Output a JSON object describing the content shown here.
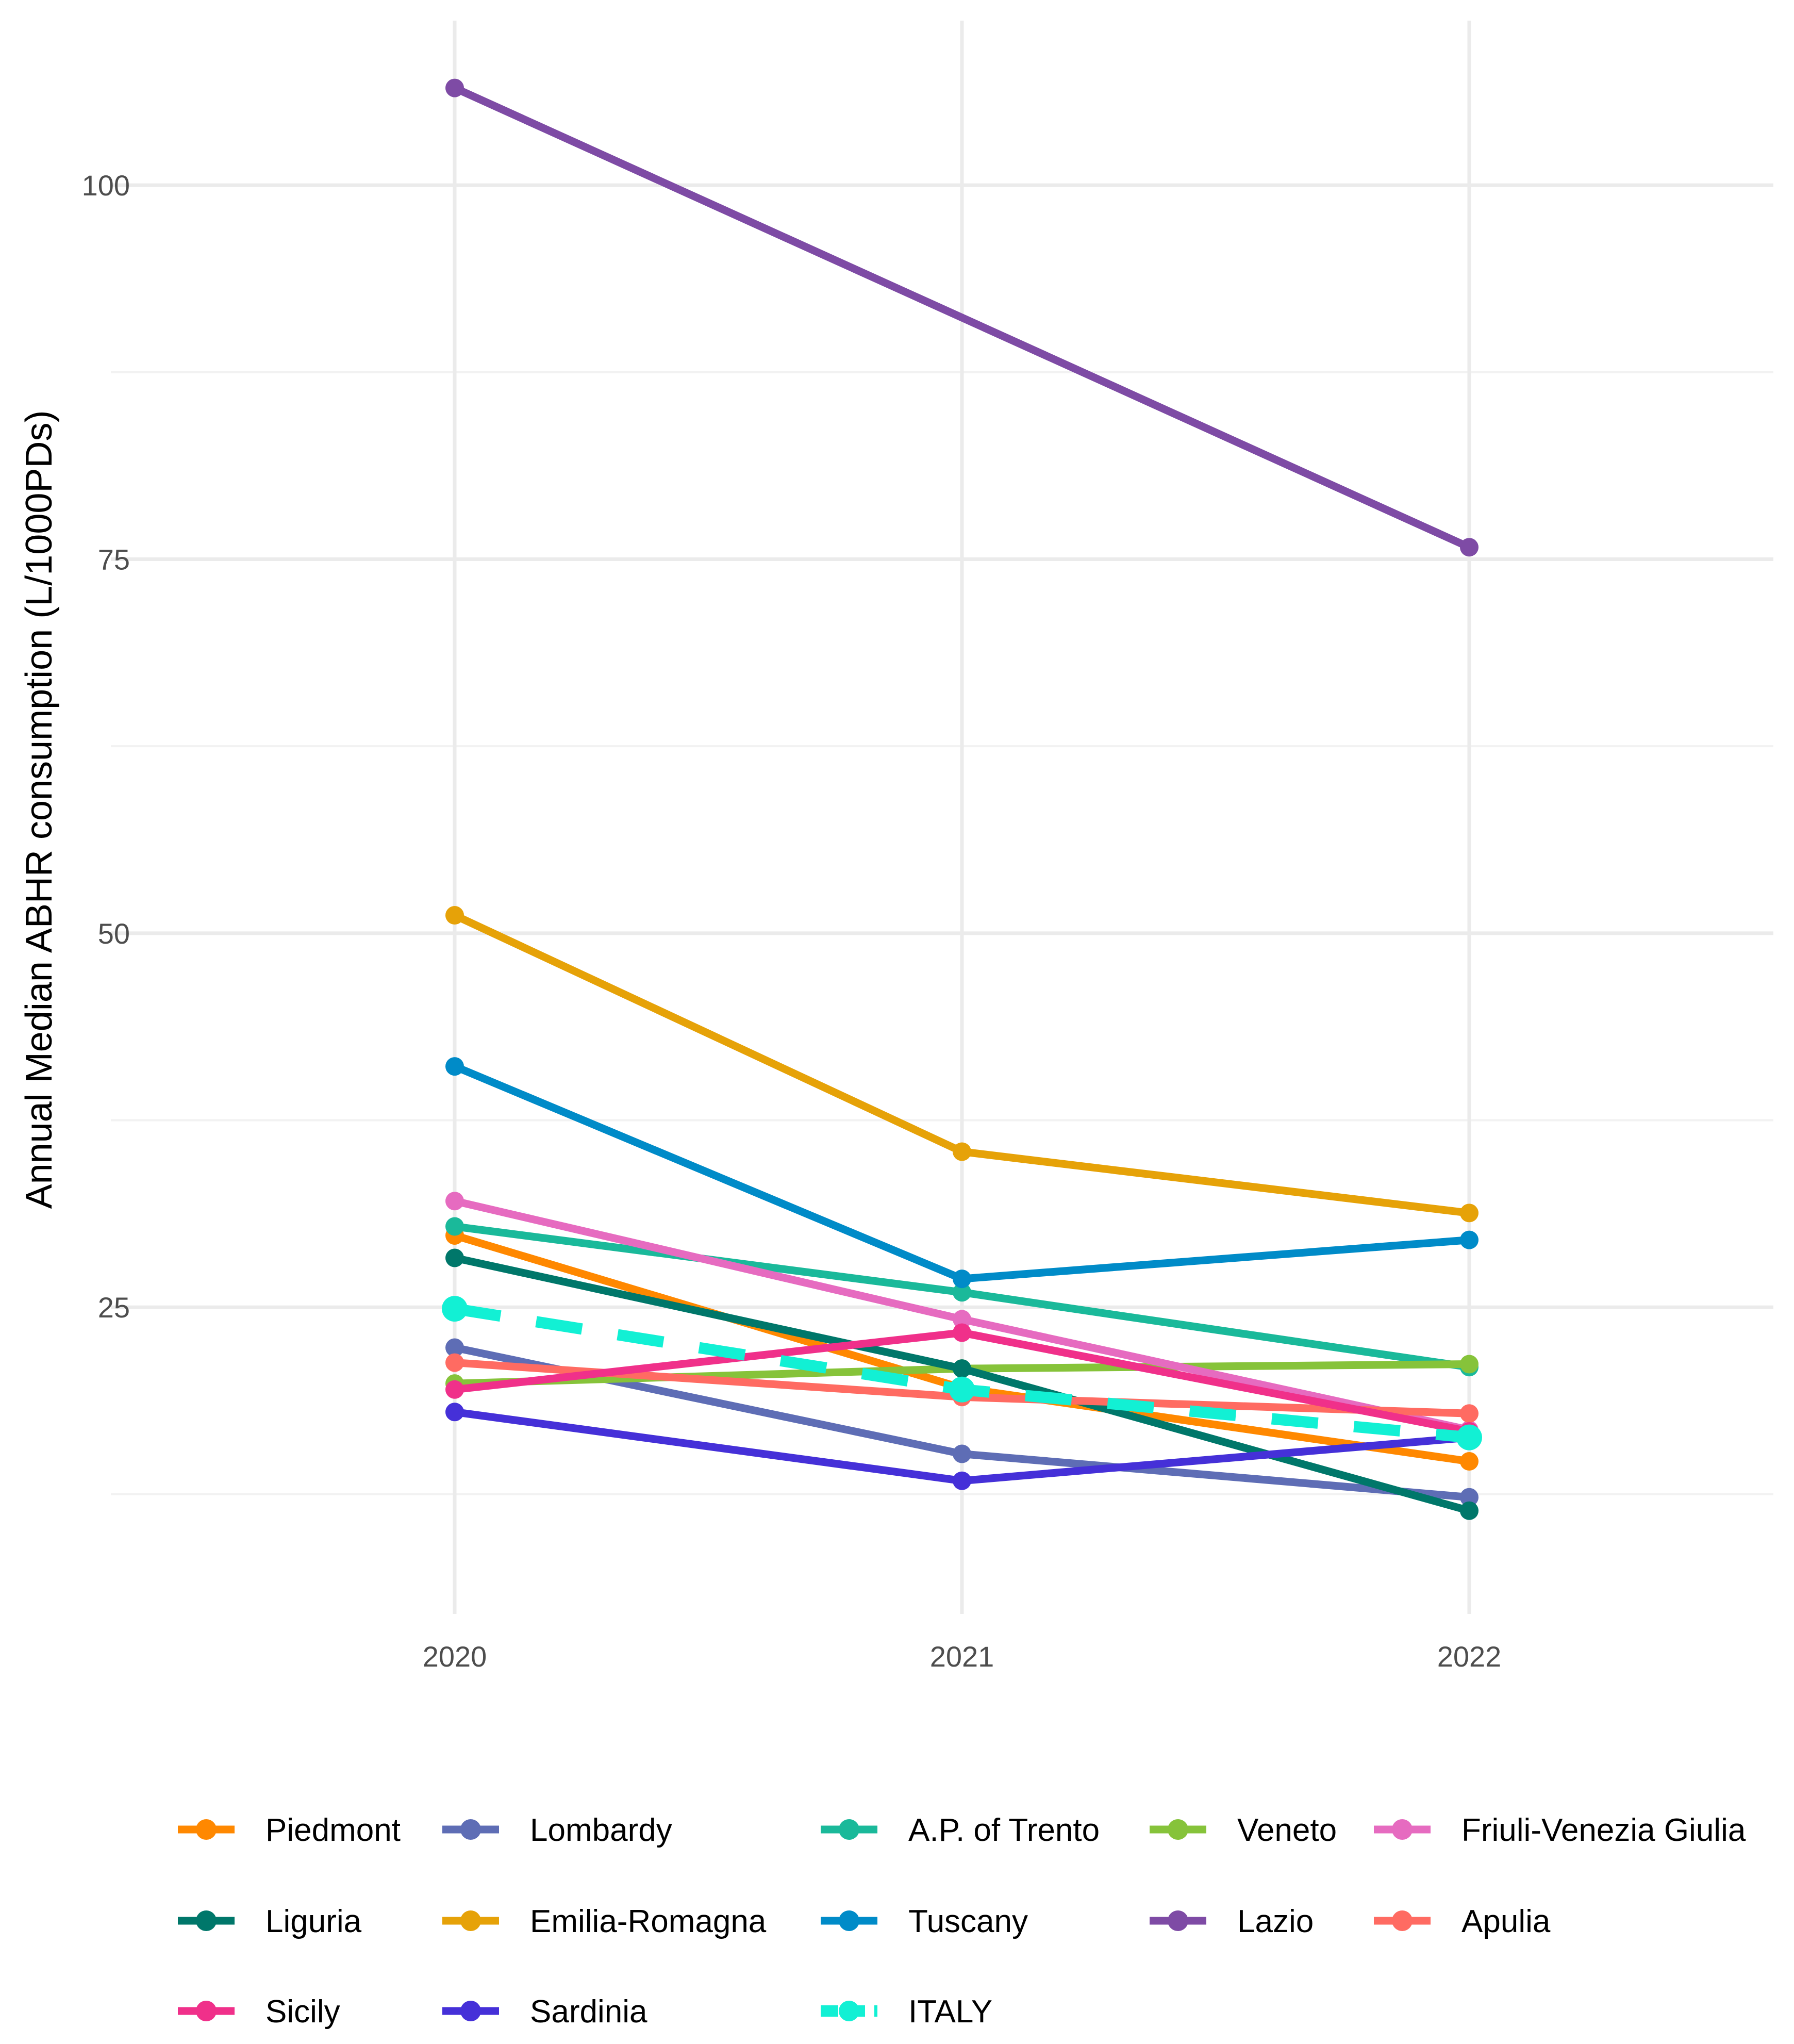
{
  "chart_data": {
    "type": "line",
    "title": "",
    "xlabel": "",
    "ylabel": "Annual Median ABHR consumption (L/1000PDs)",
    "x": [
      "2020",
      "2021",
      "2022"
    ],
    "ylim": [
      4.5,
      111
    ],
    "yticks": [
      25,
      50,
      75,
      100
    ],
    "grid": true,
    "legend_position": "bottom",
    "series": [
      {
        "name": "Piedmont",
        "color": "#FF8800",
        "dashed": false,
        "values": [
          29.8,
          19.6,
          14.7
        ]
      },
      {
        "name": "Lombardy",
        "color": "#5E6DB5",
        "dashed": false,
        "values": [
          22.3,
          15.2,
          12.3
        ]
      },
      {
        "name": "A.P. of Trento",
        "color": "#1AB99A",
        "dashed": false,
        "values": [
          30.4,
          26.0,
          21.0
        ]
      },
      {
        "name": "Veneto",
        "color": "#86C33A",
        "dashed": false,
        "values": [
          19.9,
          20.9,
          21.2
        ]
      },
      {
        "name": "Friuli-Venezia Giulia",
        "color": "#E66BC0",
        "dashed": false,
        "values": [
          32.1,
          24.2,
          16.8
        ]
      },
      {
        "name": "Liguria",
        "color": "#00776A",
        "dashed": false,
        "values": [
          28.3,
          20.9,
          11.4
        ]
      },
      {
        "name": "Emilia-Romagna",
        "color": "#E6A208",
        "dashed": false,
        "values": [
          51.2,
          35.4,
          31.3
        ]
      },
      {
        "name": "Tuscany",
        "color": "#008BC8",
        "dashed": false,
        "values": [
          41.1,
          26.9,
          29.5
        ]
      },
      {
        "name": "Lazio",
        "color": "#7E4BA5",
        "dashed": false,
        "values": [
          106.5,
          null,
          75.8
        ]
      },
      {
        "name": "Apulia",
        "color": "#FF6B62",
        "dashed": false,
        "values": [
          21.3,
          19.0,
          17.9
        ]
      },
      {
        "name": "Sicily",
        "color": "#F0308A",
        "dashed": false,
        "values": [
          19.5,
          23.3,
          16.7
        ]
      },
      {
        "name": "Sardinia",
        "color": "#4530D8",
        "dashed": false,
        "values": [
          18.0,
          13.4,
          16.3
        ]
      },
      {
        "name": "ITALY",
        "color": "#12F0D4",
        "dashed": true,
        "values": [
          24.9,
          19.5,
          16.3
        ]
      }
    ]
  }
}
